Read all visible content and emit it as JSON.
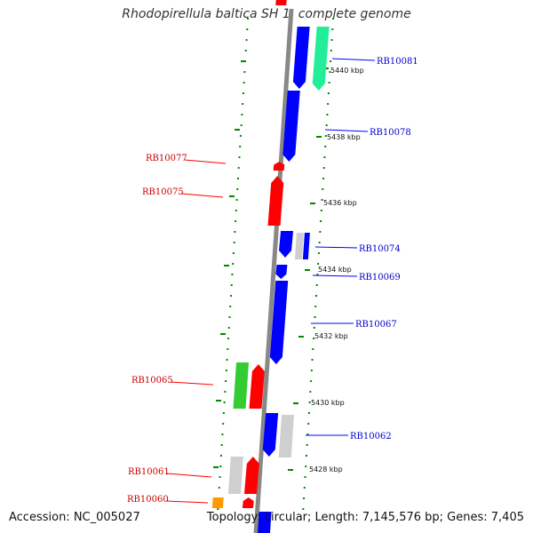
{
  "title": "Rhodopirellula baltica SH 1, complete genome",
  "footer": {
    "accession": "Accession: NC_005027",
    "summary": "Topology: circular; Length: 7,145,576 bp; Genes: 7,405"
  },
  "colors": {
    "red": "#ff0000",
    "blue": "#0000ff",
    "green": "#33cc33",
    "teal": "#22ee99",
    "grey": "#cfcfcf",
    "orange": "#ff9900",
    "dot": "#008800",
    "axis": "#888888",
    "label_red": "#cc0000",
    "label_blue": "#0000cc"
  },
  "ticks": [
    "5440 kbp",
    "5438 kbp",
    "5436 kbp",
    "5434 kbp",
    "5432 kbp",
    "5430 kbp",
    "5428 kbp"
  ],
  "genes_left": [
    {
      "name": "RB10077"
    },
    {
      "name": "RB10075"
    },
    {
      "name": "RB10065"
    },
    {
      "name": "RB10061"
    },
    {
      "name": "RB10060"
    }
  ],
  "genes_right": [
    {
      "name": "RB10081"
    },
    {
      "name": "RB10078"
    },
    {
      "name": "RB10074"
    },
    {
      "name": "RB10069"
    },
    {
      "name": "RB10067"
    },
    {
      "name": "RB10062"
    }
  ]
}
